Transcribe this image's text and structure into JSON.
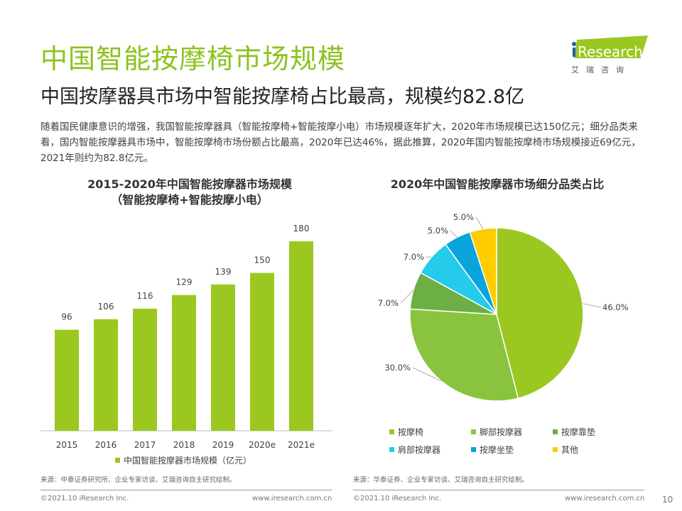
{
  "header": {
    "title": "中国智能按摩椅市场规模",
    "subtitle": "中国按摩器具市场中智能按摩椅占比最高，规模约82.8亿",
    "description": "随着国民健康意识的增强，我国智能按摩器具（智能按摩椅+智能按摩小电）市场规模逐年扩大，2020年市场规模已达150亿元；细分品类来看，国内智能按摩器具市场中，智能按摩椅市场份额占比最高，2020年已达46%，据此推算，2020年国内智能按摩椅市场规模接近69亿元，2021年则约为82.8亿元。"
  },
  "logo": {
    "brand": "iResearch",
    "cn": "艾 瑞 咨 询"
  },
  "chart_data": [
    {
      "type": "bar",
      "title": "2015-2020年中国智能按摩器市场规模",
      "subtitle": "（智能按摩椅+智能按摩小电）",
      "categories": [
        "2015",
        "2016",
        "2017",
        "2018",
        "2019",
        "2020e",
        "2021e"
      ],
      "series": [
        {
          "name": "中国智能按摩器市场规模（亿元）",
          "values": [
            96,
            106,
            116,
            129,
            139,
            150,
            180
          ],
          "color": "#9BC820"
        }
      ],
      "ylim": [
        0,
        180
      ],
      "grid": false,
      "legend": "bottom"
    },
    {
      "type": "pie",
      "title": "2020年中国智能按摩器市场细分品类占比",
      "categories": [
        "按摩椅",
        "脚部按摩器",
        "按摩靠垫",
        "肩部按摩器",
        "按摩坐垫",
        "其他"
      ],
      "values": [
        46.0,
        30.0,
        7.0,
        7.0,
        5.0,
        5.0
      ],
      "labels": [
        "46.0%",
        "30.0%",
        "7.0%",
        "7.0%",
        "5.0%",
        "5.0%"
      ],
      "colors": [
        "#9BC820",
        "#8AC43F",
        "#6BAF45",
        "#25CBEA",
        "#0AA3DB",
        "#FFCC00"
      ],
      "legend": "bottom"
    }
  ],
  "sources": {
    "left": "来源：中泰证券研究所、企业专家访谈、艾瑞咨询自主研究绘制。",
    "right": "来源：华泰证券、企业专家访谈、艾瑞咨询自主研究绘制。"
  },
  "footer": {
    "copyright": "©2021.10 iResearch Inc.",
    "url": "www.iresearch.com.cn",
    "page": "10"
  }
}
